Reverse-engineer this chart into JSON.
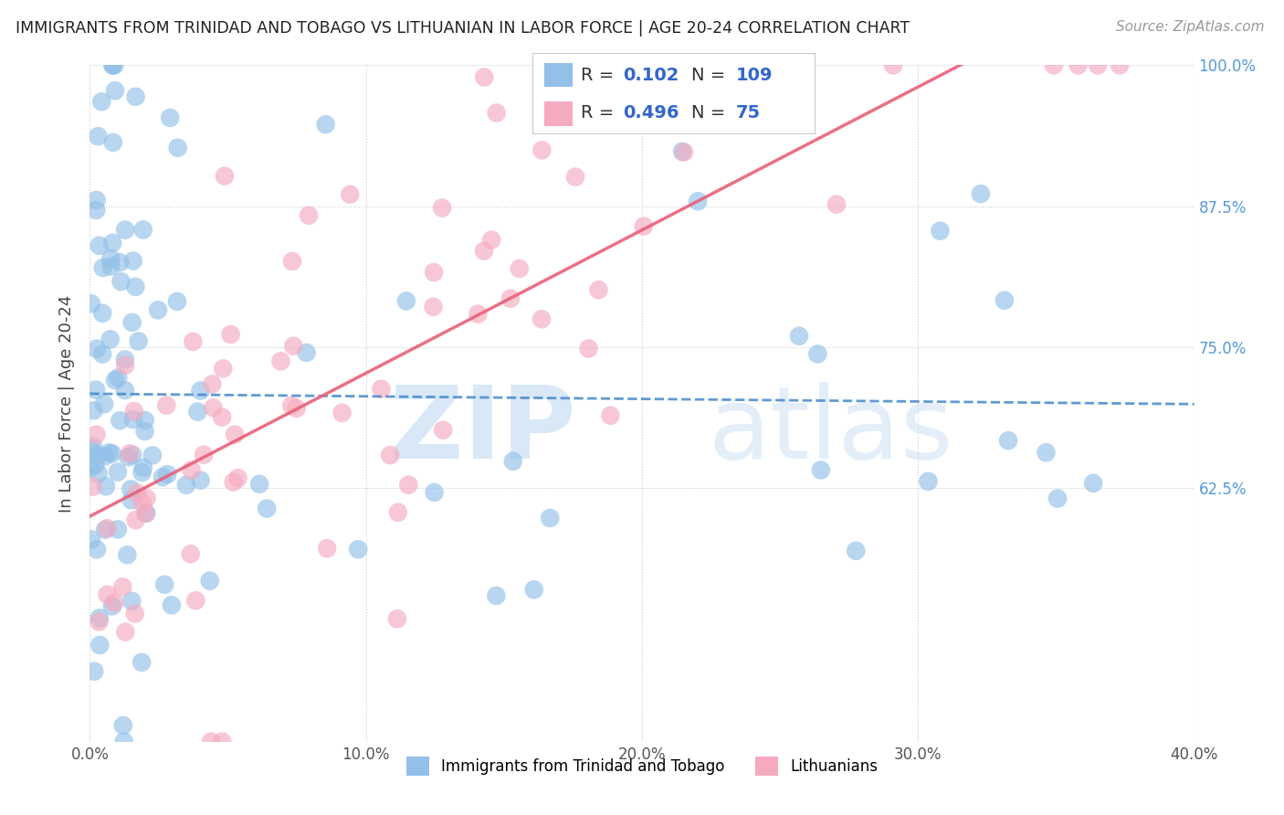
{
  "title": "IMMIGRANTS FROM TRINIDAD AND TOBAGO VS LITHUANIAN IN LABOR FORCE | AGE 20-24 CORRELATION CHART",
  "source": "Source: ZipAtlas.com",
  "ylabel": "In Labor Force | Age 20-24",
  "xlim": [
    0.0,
    40.0
  ],
  "ylim": [
    40.0,
    100.0
  ],
  "xticks": [
    0.0,
    10.0,
    20.0,
    30.0,
    40.0
  ],
  "yticks": [
    62.5,
    75.0,
    87.5,
    100.0
  ],
  "xticklabels": [
    "0.0%",
    "10.0%",
    "20.0%",
    "30.0%",
    "40.0%"
  ],
  "yticklabels_right": [
    "62.5%",
    "75.0%",
    "87.5%",
    "100.0%"
  ],
  "blue_R": 0.102,
  "blue_N": 109,
  "pink_R": 0.496,
  "pink_N": 75,
  "blue_color": "#92C0E8",
  "pink_color": "#F5AABF",
  "blue_line_color": "#4488CC",
  "pink_line_color": "#E8607A",
  "right_tick_color": "#5599DD",
  "legend_label_blue": "Immigrants from Trinidad and Tobago",
  "legend_label_pink": "Lithuanians",
  "watermark_zip_color": "#C8DFF5",
  "watermark_atlas_color": "#C8DFF5"
}
